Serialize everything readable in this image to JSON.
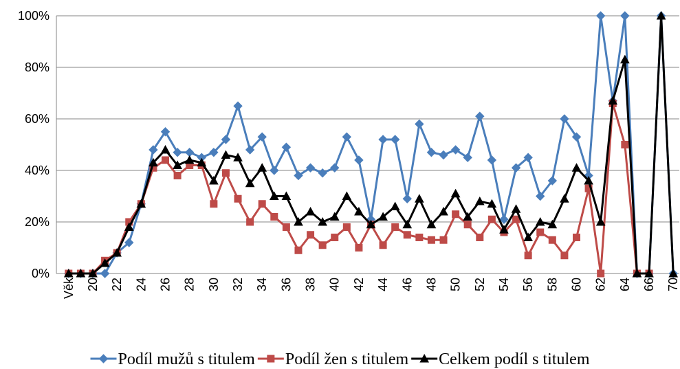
{
  "chart_data": {
    "type": "line",
    "categories": [
      "Věk",
      null,
      "20",
      null,
      "22",
      null,
      "24",
      null,
      "26",
      null,
      "28",
      null,
      "30",
      null,
      "32",
      null,
      "34",
      null,
      "36",
      null,
      "38",
      null,
      "40",
      null,
      "42",
      null,
      "44",
      null,
      "46",
      null,
      "48",
      null,
      "50",
      null,
      "52",
      null,
      "54",
      null,
      "56",
      null,
      "58",
      null,
      "60",
      null,
      "62",
      null,
      "64",
      null,
      "66",
      null,
      "70"
    ],
    "series": [
      {
        "name": "Podíl mužů s titulem",
        "color": "#4a7ebb",
        "marker": "diamond",
        "values": [
          0,
          0,
          0,
          0,
          8,
          12,
          27,
          48,
          55,
          47,
          47,
          45,
          47,
          52,
          65,
          48,
          53,
          40,
          49,
          38,
          41,
          39,
          41,
          53,
          44,
          21,
          52,
          52,
          29,
          58,
          47,
          46,
          48,
          45,
          61,
          44,
          21,
          41,
          45,
          30,
          36,
          60,
          53,
          38,
          100,
          67,
          100,
          0,
          0,
          100,
          0
        ]
      },
      {
        "name": "Podíl žen s titulem",
        "color": "#be4b48",
        "marker": "square",
        "values": [
          0,
          0,
          0,
          5,
          8,
          20,
          27,
          41,
          44,
          38,
          42,
          42,
          27,
          39,
          29,
          20,
          27,
          22,
          18,
          9,
          15,
          11,
          14,
          18,
          10,
          19,
          11,
          18,
          15,
          14,
          13,
          13,
          23,
          19,
          14,
          21,
          16,
          21,
          7,
          16,
          13,
          7,
          14,
          33,
          0,
          66,
          50,
          0,
          0,
          null,
          null
        ]
      },
      {
        "name": "Celkem podíl s titulem",
        "color": "#000000",
        "marker": "triangle",
        "values": [
          0,
          0,
          0,
          4,
          8,
          18,
          27,
          43,
          48,
          42,
          44,
          43,
          36,
          46,
          45,
          35,
          41,
          30,
          30,
          20,
          24,
          20,
          22,
          30,
          24,
          19,
          22,
          26,
          19,
          29,
          19,
          24,
          31,
          22,
          28,
          27,
          17,
          25,
          14,
          20,
          19,
          29,
          41,
          36,
          20,
          67,
          83,
          0,
          0,
          100,
          0
        ]
      }
    ],
    "ylim": [
      0,
      100
    ],
    "yticks": [
      {
        "value": 0,
        "label": "0%"
      },
      {
        "value": 20,
        "label": "20%"
      },
      {
        "value": 40,
        "label": "40%"
      },
      {
        "value": 60,
        "label": "60%"
      },
      {
        "value": 80,
        "label": "80%"
      },
      {
        "value": 100,
        "label": "100%"
      }
    ],
    "grid": true
  }
}
